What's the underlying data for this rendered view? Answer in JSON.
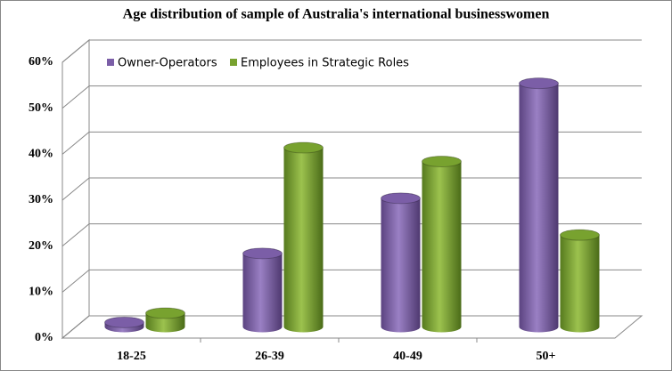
{
  "chart_data": {
    "type": "bar3d",
    "title": "Age distribution of sample of Australia's international businesswomen",
    "categories": [
      "18-25",
      "26-39",
      "40-49",
      "50+"
    ],
    "series": [
      {
        "name": "Owner-Operators",
        "color": "#7b5ea7",
        "values": [
          1,
          16,
          28,
          53
        ]
      },
      {
        "name": "Employees in Strategic Roles",
        "color": "#78a22f",
        "values": [
          3,
          39,
          36,
          20
        ]
      }
    ],
    "ylim": [
      0,
      60
    ],
    "yticks": [
      {
        "value": 0,
        "label": "0%"
      },
      {
        "value": 10,
        "label": "10%"
      },
      {
        "value": 20,
        "label": "20%"
      },
      {
        "value": 30,
        "label": "30%"
      },
      {
        "value": 40,
        "label": "40%"
      },
      {
        "value": 50,
        "label": "50%"
      },
      {
        "value": 60,
        "label": "60%"
      }
    ],
    "grid": true,
    "legend": "top-left"
  }
}
